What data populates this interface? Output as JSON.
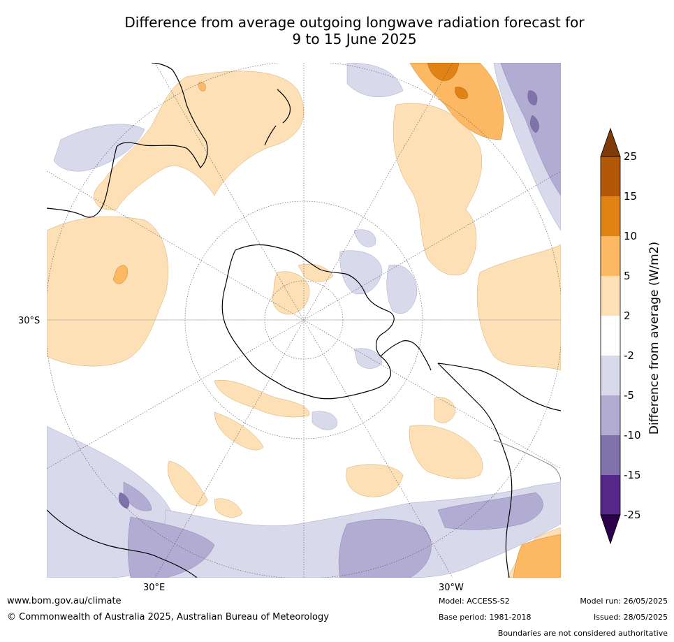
{
  "title": {
    "line1": "Difference from average outgoing longwave radiation forecast for",
    "line2": "9 to 15 June 2025"
  },
  "map": {
    "projection": "south-polar-stereographic",
    "lat_label": "30°S",
    "lon_labels": [
      "30°E",
      "30°W"
    ]
  },
  "colorbar": {
    "label": "Difference from average (W/m2)",
    "ticks": [
      "25",
      "15",
      "10",
      "5",
      "2",
      "-2",
      "-5",
      "-10",
      "-15",
      "-25"
    ],
    "colors": {
      "above_25": "#7f3b08",
      "15_25": "#b35806",
      "10_15": "#e08214",
      "5_10": "#fdb863",
      "2_5": "#fee0b6",
      "neutral": "#ffffff",
      "neg2_neg5": "#d8daeb",
      "neg5_neg10": "#b2abd2",
      "neg10_neg15": "#8073ac",
      "neg15_neg25": "#542788",
      "below_neg25": "#2d004b"
    }
  },
  "footer": {
    "url": "www.bom.gov.au/climate",
    "copyright": "© Commonwealth of Australia 2025, Australian Bureau of Meteorology",
    "model": "Model: ACCESS-S2",
    "base_period": "Base period: 1981-2018",
    "model_run": "Model run: 26/05/2025",
    "issued": "Issued: 28/05/2025",
    "disclaimer": "Boundaries are not considered authoritative"
  }
}
